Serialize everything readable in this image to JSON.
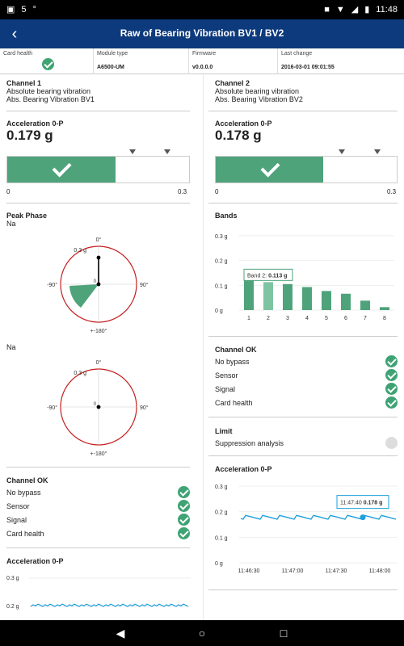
{
  "status": {
    "notif": "5",
    "temp": "°",
    "time": "11:48"
  },
  "appbar": {
    "title": "Raw of Bearing Vibration BV1 / BV2"
  },
  "info": {
    "card_health": "Card health",
    "module_type_label": "Module type",
    "module_type": "A6500-UM",
    "firmware_label": "Firmware",
    "firmware": "v0.0.0.0",
    "last_change_label": "Last change",
    "last_change": "2016-03-01 09:01:55"
  },
  "ch1": {
    "title": "Channel 1",
    "desc1": "Absolute bearing vibration",
    "desc2": "Abs. Bearing Vibration BV1",
    "acc_title": "Acceleration 0-P",
    "acc_value": "0.179 g",
    "acc_fraction": 0.597,
    "scale_min": "0",
    "scale_max": "0.3",
    "peak_title": "Peak Phase",
    "peak_na1": "Na",
    "peak_na2": "Na",
    "polar": {
      "top": "0°",
      "left": "-90°",
      "right": "90°",
      "bottom": "+-180°",
      "r": "0.3 g",
      "center": "0"
    },
    "ok_title": "Channel OK",
    "ok_items": [
      "No bypass",
      "Sensor",
      "Signal",
      "Card health"
    ],
    "acc2_title": "Acceleration 0-P",
    "acc2_y": [
      "0.3 g",
      "0.2 g"
    ]
  },
  "ch2": {
    "title": "Channel 2",
    "desc1": "Absolute bearing vibration",
    "desc2": "Abs. Bearing Vibration BV2",
    "acc_title": "Acceleration 0-P",
    "acc_value": "0.178 g",
    "acc_fraction": 0.593,
    "scale_min": "0",
    "scale_max": "0.3",
    "bands_title": "Bands",
    "ok_title": "Channel OK",
    "ok_items": [
      "No bypass",
      "Sensor",
      "Signal",
      "Card health"
    ],
    "limit_title": "Limit",
    "limit_item": "Suppression analysis",
    "acc2_title": "Acceleration 0-P",
    "trend_tooltip_time": "11:47:40",
    "trend_tooltip_value": "0.178 g"
  },
  "chart_data": [
    {
      "type": "bar",
      "title": "Bands",
      "categories": [
        "1",
        "2",
        "3",
        "4",
        "5",
        "6",
        "7",
        "8"
      ],
      "values": [
        0.13,
        0.113,
        0.105,
        0.093,
        0.077,
        0.066,
        0.038,
        0.012
      ],
      "ylim": [
        0,
        0.3
      ],
      "yticks": [
        "0 g",
        "0.1 g",
        "0.2 g",
        "0.3 g"
      ],
      "tooltip_label": "Band 2:",
      "tooltip_value": "0.113 g",
      "color": "#4fa37b"
    },
    {
      "type": "line",
      "title": "Acceleration 0-P",
      "xticks": [
        "11:46:30",
        "11:47:00",
        "11:47:30",
        "11:48:00"
      ],
      "yticks": [
        "0 g",
        "0.1 g",
        "0.2 g",
        "0.3 g"
      ],
      "ylim": [
        0,
        0.3
      ],
      "level": 0.178,
      "color": "#1ea0dc"
    }
  ]
}
